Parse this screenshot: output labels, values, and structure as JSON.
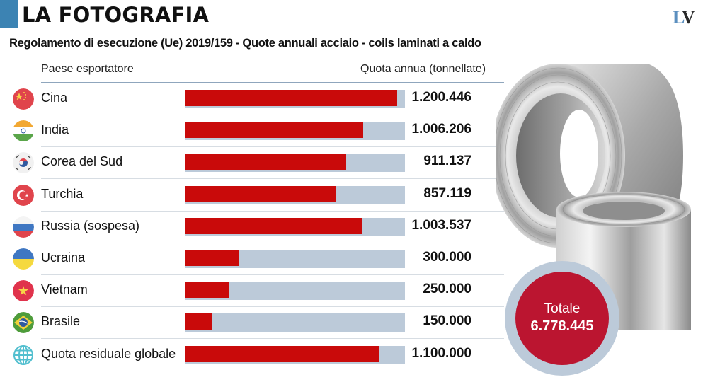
{
  "header": {
    "title": "LA FOTOGRAFIA",
    "logo_l": "L",
    "logo_v": "V",
    "subtitle": "Regolamento di esecuzione (Ue) 2019/159 - Quote annuali acciaio - coils laminati a caldo",
    "accent_color": "#3c83b3"
  },
  "columns": {
    "country": "Paese esportatore",
    "quota": "Quota annua (tonnellate)"
  },
  "total": {
    "label": "Totale",
    "value": "6.778.445"
  },
  "colors": {
    "bar": "#c90a0a",
    "track": "#bccad9",
    "total_circle": "#bb1530"
  },
  "chart_data": {
    "type": "bar",
    "orientation": "horizontal",
    "title": "Regolamento di esecuzione (Ue) 2019/159 - Quote annuali acciaio - coils laminati a caldo",
    "xlabel": "Quota annua (tonnellate)",
    "ylabel": "Paese esportatore",
    "xlim": [
      0,
      1245000
    ],
    "grid": false,
    "categories": [
      "Cina",
      "India",
      "Corea del Sud",
      "Turchia",
      "Russia (sospesa)",
      "Ucraina",
      "Vietnam",
      "Brasile",
      "Quota residuale globale"
    ],
    "values": [
      1200446,
      1006206,
      911137,
      857119,
      1003537,
      300000,
      250000,
      150000,
      1100000
    ],
    "value_labels": [
      "1.200.446",
      "1.006.206",
      "911.137",
      "857.119",
      "1.003.537",
      "300.000",
      "250.000",
      "150.000",
      "1.100.000"
    ],
    "icons": [
      "flag-china-icon",
      "flag-india-icon",
      "flag-south-korea-icon",
      "flag-turkey-icon",
      "flag-russia-icon",
      "flag-ukraine-icon",
      "flag-vietnam-icon",
      "flag-brazil-icon",
      "globe-icon"
    ],
    "total": 6778445
  }
}
